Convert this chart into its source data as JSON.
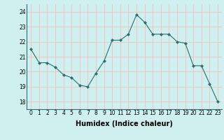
{
  "x": [
    0,
    1,
    2,
    3,
    4,
    5,
    6,
    7,
    8,
    9,
    10,
    11,
    12,
    13,
    14,
    15,
    16,
    17,
    18,
    19,
    20,
    21,
    22,
    23
  ],
  "y": [
    21.5,
    20.6,
    20.6,
    20.3,
    19.8,
    19.6,
    19.1,
    19.0,
    19.9,
    20.7,
    22.1,
    22.1,
    22.5,
    23.8,
    23.3,
    22.5,
    22.5,
    22.5,
    22.0,
    21.9,
    20.4,
    20.4,
    19.2,
    18.0
  ],
  "line_color": "#2d6e6e",
  "marker": "D",
  "marker_size": 2.0,
  "bg_color": "#d0f0f0",
  "grid_color": "#f0c0c0",
  "xlabel": "Humidex (Indice chaleur)",
  "ylim": [
    17.5,
    24.5
  ],
  "xlim": [
    -0.5,
    23.5
  ],
  "yticks": [
    18,
    19,
    20,
    21,
    22,
    23,
    24
  ],
  "xticks": [
    0,
    1,
    2,
    3,
    4,
    5,
    6,
    7,
    8,
    9,
    10,
    11,
    12,
    13,
    14,
    15,
    16,
    17,
    18,
    19,
    20,
    21,
    22,
    23
  ],
  "tick_fontsize": 5.5,
  "xlabel_fontsize": 7.0,
  "linewidth": 0.8
}
